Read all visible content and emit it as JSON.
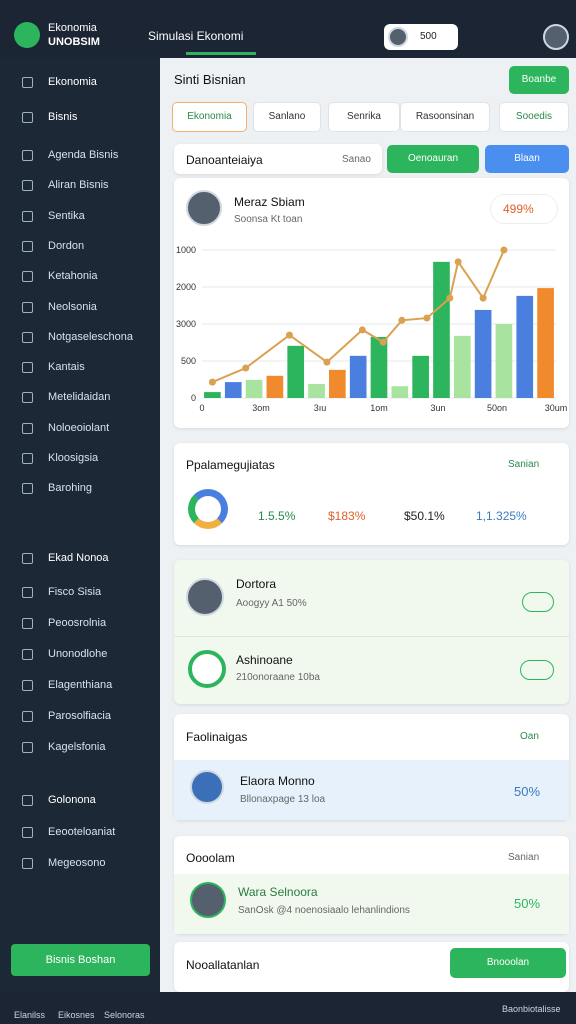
{
  "topbar": {
    "logo_line1": "Ekonomia",
    "logo_line2": "UNOBSIM",
    "title": "Simulasi Ekonomi",
    "badge": "500"
  },
  "sidebar": {
    "items": [
      "Ekonomia",
      "Bisnis",
      "Agenda Bisnis",
      "Aliran Bisnis",
      "Sentika",
      "Dordon",
      "Ketahonia",
      "Neolsonia",
      "Notgaseleschona",
      "Kantais",
      "Metelidaidan",
      "Noloeoiolant",
      "Kloosigsia",
      "Barohing"
    ],
    "section2": "Ekad Nonoa",
    "items2": [
      "Fisco Sisia",
      "Peoosrolnia",
      "Unonodlohe",
      "Elagenthiana",
      "Parosolfiacia",
      "Kagelsfonia"
    ],
    "section3": "Golonona",
    "items3": [
      "Eeooteloaniat",
      "Megeosono"
    ],
    "cta": "Bisnis Boshan"
  },
  "bottom_nav": {
    "items": [
      "Elanilss",
      "Eikosnes",
      "Selonoras"
    ],
    "right": "Baonbiotalisse"
  },
  "main": {
    "page_title": "Sinti Bisnian",
    "header_button": "Boanbe",
    "tabs": [
      "Ekonomia",
      "Sanlano",
      "Senrika",
      "Rasoonsinan",
      "Sooedis"
    ],
    "toolbar": {
      "label": "Danoanteiaiya",
      "filter": "Sanao",
      "button1": "Oenoauran",
      "button2": "Blaan"
    },
    "chart_card": {
      "name": "Meraz Sbiam",
      "sub": "Soonsa Kt toan",
      "badge": "499%"
    },
    "stats_card": {
      "title": "Ppalamegujiatas",
      "link": "Sanian",
      "stats": [
        "1.5.5%",
        "$183%",
        "$50.1%",
        "1,1.325%"
      ]
    },
    "list_card": {
      "items": [
        {
          "name": "Dortora",
          "sub": "Aoogyy A1 50%"
        },
        {
          "name": "Ashinoane",
          "sub": "210onoraane 10ba"
        }
      ]
    },
    "card2": {
      "title": "Faolinaigas",
      "link": "Oan",
      "name": "Elaora Monno",
      "sub": "Bllonaxpage 13 loa",
      "value": "50%"
    },
    "card3": {
      "title": "Oooolam",
      "link": "Sanian",
      "name": "Wara Selnoora",
      "sub": "SanOsk @4 noenosiaalo lehanlindions",
      "value": "50%"
    },
    "card4": {
      "title": "Nooallatanlan",
      "button": "Bnooolan"
    }
  },
  "chart_data": {
    "type": "bar-line",
    "yticks": [
      {
        "value": 0,
        "label": "0"
      },
      {
        "value": 1,
        "label": "500"
      },
      {
        "value": 2,
        "label": "3000"
      },
      {
        "value": 3,
        "label": "2000"
      },
      {
        "value": 4,
        "label": "1000"
      }
    ],
    "ylim": [
      0,
      4
    ],
    "xlim": [
      -0.5,
      16.5
    ],
    "x_labels": [
      "0",
      "3om",
      "3ıu",
      "1om",
      "3un",
      "50on",
      "30um"
    ],
    "bars": {
      "x": [
        0,
        1,
        2,
        3,
        4,
        5,
        6,
        7,
        8,
        9,
        10,
        11,
        12,
        13,
        14,
        15,
        16
      ],
      "values": [
        0.16,
        0.43,
        0.49,
        0.6,
        1.41,
        0.38,
        0.76,
        1.14,
        1.65,
        0.32,
        1.14,
        3.68,
        1.68,
        2.38,
        2.0,
        2.76,
        2.97
      ],
      "colors": [
        "#2db55d",
        "#4a7fe0",
        "#a9e3a0",
        "#f08a2c",
        "#2db55d",
        "#a9e3a0",
        "#f08a2c",
        "#4a7fe0",
        "#2db55d",
        "#a9e3a0",
        "#2db55d",
        "#2db55d",
        "#a9e3a0",
        "#4a7fe0",
        "#a9e3a0",
        "#4a7fe0",
        "#f08a2c"
      ]
    },
    "line": {
      "color": "#d9a150",
      "x": [
        0,
        1.6,
        3.7,
        5.5,
        7.2,
        8.2,
        9.1,
        10.3,
        11.4,
        11.8,
        13,
        14
      ],
      "values": [
        0.43,
        0.81,
        1.7,
        0.97,
        1.84,
        1.51,
        2.1,
        2.16,
        2.7,
        3.68,
        2.7,
        4.0
      ]
    }
  }
}
